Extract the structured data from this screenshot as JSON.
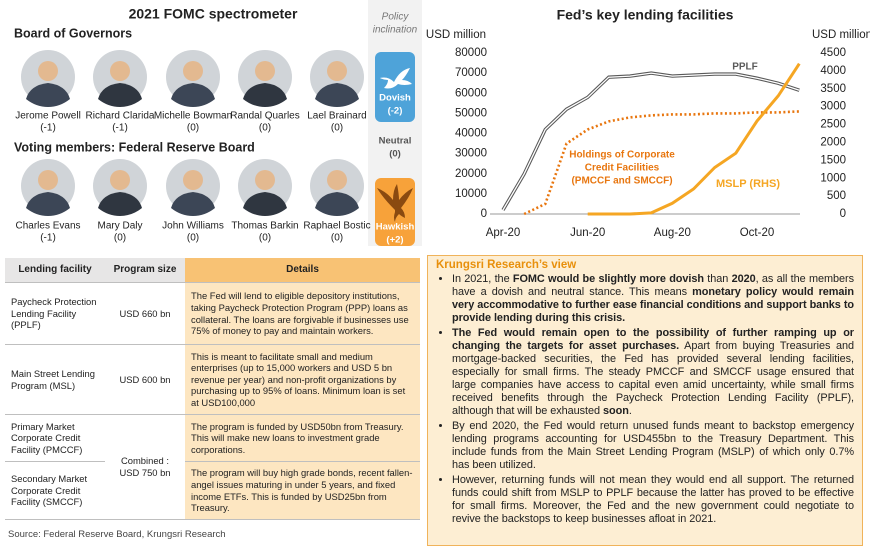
{
  "spectrometer": {
    "title": "2021 FOMC spectrometer",
    "board_heading": "Board of Governors",
    "voting_heading": "Voting members:  Federal Reserve Board",
    "board": [
      {
        "name": "Jerome Powell",
        "stance": "(-1)"
      },
      {
        "name": "Richard Clarida",
        "stance": "(-1)"
      },
      {
        "name": "Michelle Bowman",
        "stance": "(0)"
      },
      {
        "name": "Randal Quarles",
        "stance": "(0)"
      },
      {
        "name": "Lael Brainard",
        "stance": "(0)"
      }
    ],
    "voting": [
      {
        "name": "Charles Evans",
        "stance": "(-1)"
      },
      {
        "name": "Mary Daly",
        "stance": "(0)"
      },
      {
        "name": "John Williams",
        "stance": "(0)"
      },
      {
        "name": "Thomas Barkin",
        "stance": "(0)"
      },
      {
        "name": "Raphael Bostic",
        "stance": "(0)"
      }
    ],
    "policy": {
      "title": [
        "Policy",
        "inclination"
      ],
      "dovish": {
        "label": "Dovish",
        "score": "(-2)"
      },
      "neutral": {
        "label": "Neutral",
        "score": "(0)"
      },
      "hawkish": {
        "label": "Hawkish",
        "score": "(+2)"
      }
    }
  },
  "chart_data": {
    "type": "line",
    "title": "Fed’s key lending facilities",
    "y_label": "USD million",
    "y2_label": "USD million",
    "categories": [
      "Apr-20",
      null,
      null,
      null,
      "Jun-20",
      null,
      null,
      null,
      "Aug-20",
      null,
      null,
      null,
      "Oct-20",
      null,
      null
    ],
    "ylim": [
      0,
      80000
    ],
    "yticks": [
      0,
      10000,
      20000,
      30000,
      40000,
      50000,
      60000,
      70000,
      80000
    ],
    "y2lim": [
      0,
      4500
    ],
    "y2ticks": [
      0,
      500,
      1000,
      1500,
      2000,
      2500,
      3000,
      3500,
      4000,
      4500
    ],
    "grid": false,
    "series": [
      {
        "name": "PPLF",
        "color": "#595959",
        "style": "double",
        "values": [
          2000,
          20000,
          42000,
          52000,
          58000,
          68000,
          68500,
          70000,
          68500,
          69000,
          69500,
          69500,
          67500,
          65000,
          61500
        ]
      },
      {
        "name": [
          "Holdings of Corporate",
          "Credit Facilities",
          "(PMCCF and SMCCF)"
        ],
        "color": "#e8760f",
        "style": "dotted",
        "values": [
          null,
          0,
          5000,
          35000,
          42000,
          46000,
          48000,
          49000,
          49500,
          49500,
          50000,
          50000,
          50500,
          50500,
          51000
        ]
      },
      {
        "name": "MSLP (RHS)",
        "color": "#f5a623",
        "style": "solid",
        "axis": "y2",
        "values": [
          null,
          null,
          null,
          null,
          0,
          0,
          0,
          30,
          300,
          700,
          1300,
          1700,
          2600,
          3300,
          4200
        ]
      }
    ]
  },
  "table": {
    "headers": [
      "Lending facility",
      "Program size",
      "Details"
    ],
    "rows": [
      {
        "facility": "Paycheck Protection Lending Facility (PPLF)",
        "size": "USD 660 bn",
        "details": "The Fed will lend to eligible depository institutions, taking Paycheck Protection Program (PPP) loans as collateral. The loans are forgivable if businesses use 75% of money to pay and maintain workers."
      },
      {
        "facility": "Main Street Lending Program (MSL)",
        "size": "USD 600 bn",
        "details": "This is meant to facilitate small and medium enterprises (up to 15,000 workers and USD 5 bn revenue per year) and non-profit organizations by purchasing up to 95% of loans. Minimum loan is set at USD100,000"
      },
      {
        "facility": "Primary Market Corporate Credit Facility (PMCCF)",
        "size": "Combined : USD 750 bn",
        "details": "The program is funded by USD50bn from Treasury. This will make new loans to investment grade corporations."
      },
      {
        "facility": "Secondary Market Corporate Credit Facility (SMCCF)",
        "details": "The program will buy high grade bonds, recent fallen-angel issues maturing in under 5 years, and fixed income ETFs. This is funded by USD25bn from Treasury."
      }
    ]
  },
  "source": "Source: Federal Reserve Board, Krungsri Research",
  "view": {
    "title": "Krungsri Research’s view",
    "bullets": [
      [
        "In 2021, the ",
        {
          "bold": "FOMC would be slightly more dovish"
        },
        " than ",
        {
          "bold": "2020"
        },
        ", as all the members have a dovish and neutral stance. This means ",
        {
          "bold": "monetary policy would remain very accommodative to further ease financial conditions and support banks to provide lending during this crisis."
        }
      ],
      [
        {
          "bold": "The Fed would remain open to the possibility of further ramping up or changing the targets for asset purchases."
        },
        " Apart from buying Treasuries and mortgage-backed securities, the Fed has provided several lending facilities, especially for small firms. The steady PMCCF and SMCCF usage ensured that large companies have access to capital even amid uncertainty, while small firms received benefits through the Paycheck Protection Lending Facility (PPLF), although that will be exhausted ",
        {
          "bold": "soon"
        },
        "."
      ],
      [
        "By end 2020, the Fed would return unused funds meant to backstop emergency lending programs accounting for USD455bn to the Treasury Department. This include funds from the Main Street Lending Program (MSLP) of which only 0.7% has been utilized."
      ],
      [
        "However, returning funds will not mean they would end all support. The returned funds could shift from MSLP to PPLF because the latter has proved to be effective for small firms. Moreover, the Fed and the new government could negotiate to revive the backstops to keep businesses afloat in 2021."
      ]
    ]
  }
}
